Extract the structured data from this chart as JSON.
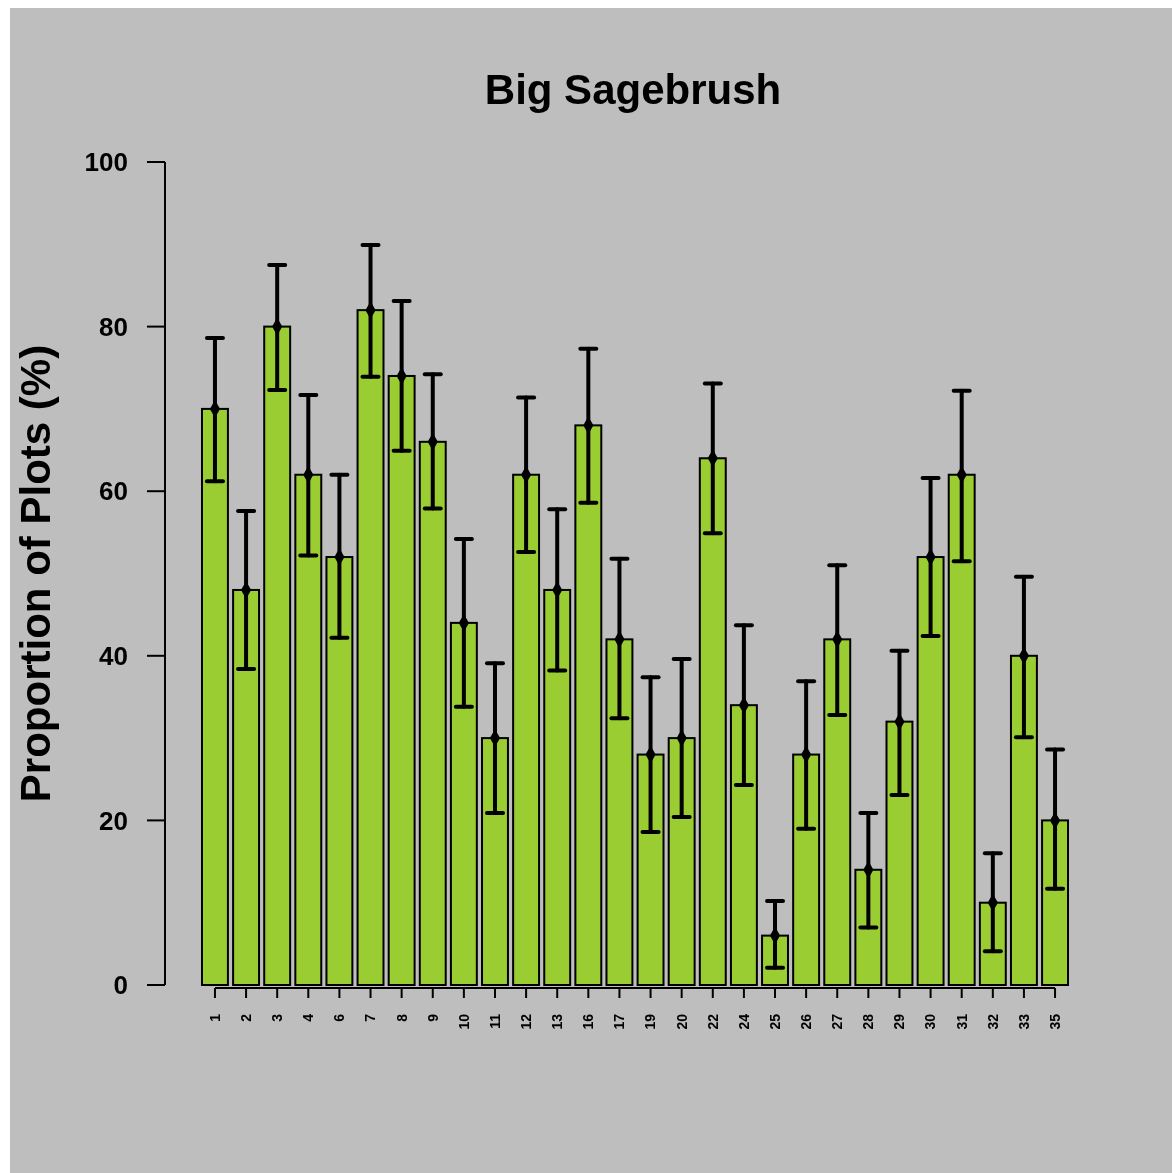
{
  "chart_data": {
    "type": "bar",
    "title": "Big Sagebrush",
    "ylabel": "Proportion of Plots (%)",
    "categories": [
      "1",
      "2",
      "3",
      "4",
      "6",
      "7",
      "8",
      "9",
      "10",
      "11",
      "12",
      "13",
      "16",
      "17",
      "19",
      "20",
      "22",
      "24",
      "25",
      "26",
      "27",
      "28",
      "29",
      "30",
      "31",
      "32",
      "33",
      "35"
    ],
    "ylim": [
      0,
      100
    ],
    "yticks": [
      0,
      20,
      40,
      60,
      80,
      100
    ],
    "grid": false,
    "series": [
      {
        "color": "#9acd32",
        "values": [
          70,
          48,
          80,
          62,
          52,
          82,
          74,
          66,
          44,
          30,
          62,
          48,
          68,
          42,
          28,
          30,
          64,
          34,
          6,
          28,
          42,
          14,
          32,
          52,
          62,
          10,
          40,
          20
        ],
        "errors": [
          [
            61.2,
            78.6
          ],
          [
            38.4,
            57.6
          ],
          [
            72.3,
            87.5
          ],
          [
            52.2,
            71.7
          ],
          [
            42.2,
            62.0
          ],
          [
            73.9,
            89.9
          ],
          [
            64.9,
            83.1
          ],
          [
            57.9,
            74.2
          ],
          [
            33.8,
            54.2
          ],
          [
            20.9,
            39.1
          ],
          [
            52.6,
            71.4
          ],
          [
            38.2,
            57.8
          ],
          [
            58.6,
            77.3
          ],
          [
            32.4,
            51.8
          ],
          [
            18.6,
            37.4
          ],
          [
            20.4,
            39.6
          ],
          [
            54.9,
            73.1
          ],
          [
            24.3,
            43.7
          ],
          [
            2.1,
            10.2
          ],
          [
            19.0,
            36.9
          ],
          [
            32.8,
            51.0
          ],
          [
            7.0,
            20.9
          ],
          [
            23.1,
            40.6
          ],
          [
            42.4,
            61.6
          ],
          [
            51.5,
            72.2
          ],
          [
            4.1,
            16.0
          ],
          [
            30.1,
            49.6
          ],
          [
            11.7,
            28.6
          ]
        ]
      },
      {
        "type": "scatter",
        "color": "#000000",
        "marker": "diamond",
        "x": [
          "1",
          "2",
          "3",
          "4",
          "6",
          "7",
          "8",
          "9",
          "10",
          "11",
          "12",
          "13",
          "16",
          "17",
          "19",
          "20",
          "22",
          "24",
          "25",
          "26",
          "27",
          "28",
          "29",
          "30",
          "31",
          "32",
          "33",
          "35"
        ],
        "values": [
          70,
          48,
          80,
          62,
          52,
          82,
          74,
          66,
          44,
          30,
          62,
          48,
          68,
          42,
          28,
          30,
          64,
          34,
          6,
          28,
          42,
          14,
          32,
          52,
          62,
          10,
          40,
          20
        ]
      }
    ]
  }
}
